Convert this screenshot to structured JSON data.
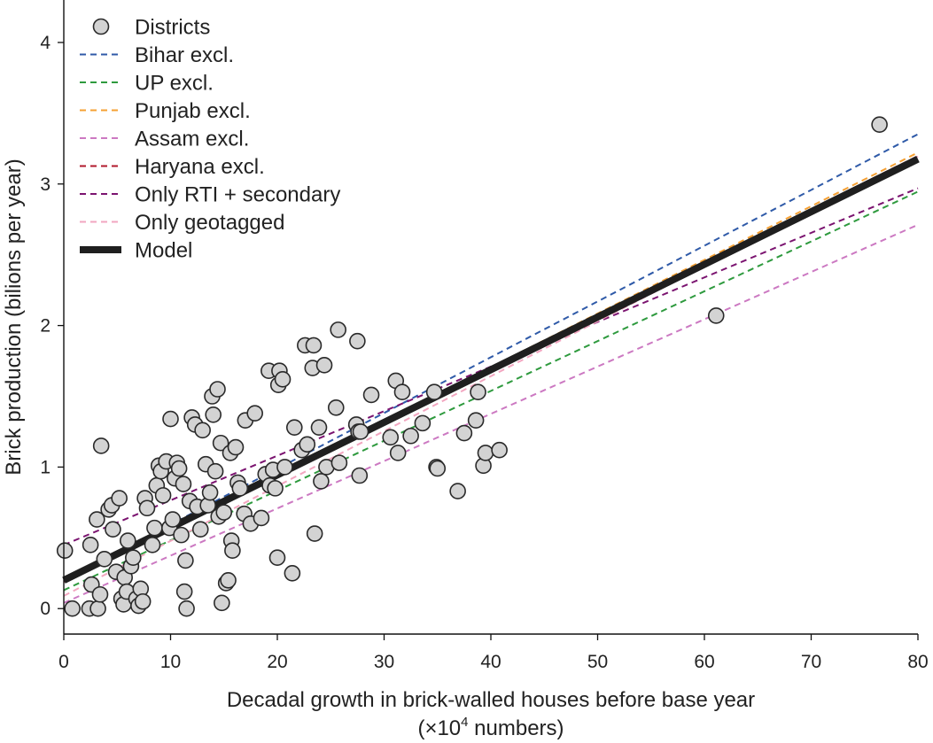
{
  "chart_data": {
    "type": "scatter",
    "title": "",
    "xlabel": "Decadal growth in brick-walled houses before base year",
    "xlabel_unit_prefix": "(×10",
    "xlabel_unit_exp": "4",
    "xlabel_unit_suffix": " numbers)",
    "ylabel": "Brick production (bilions per year)",
    "xlim": [
      0,
      80
    ],
    "ylim": [
      -0.18,
      4.3
    ],
    "xticks": [
      0,
      10,
      20,
      30,
      40,
      50,
      60,
      70,
      80
    ],
    "yticks": [
      0,
      1,
      2,
      3,
      4
    ],
    "grid": false,
    "legend_position": "top-left",
    "scatter": {
      "name": "Districts",
      "color": "#d3d3d3",
      "edgecolor": "#2a2a2a",
      "points": [
        [
          0.1,
          0.41
        ],
        [
          0.8,
          0.0
        ],
        [
          2.5,
          0.45
        ],
        [
          2.6,
          0.17
        ],
        [
          2.4,
          0.0
        ],
        [
          3.2,
          0.0
        ],
        [
          3.1,
          0.63
        ],
        [
          3.5,
          1.15
        ],
        [
          3.8,
          0.35
        ],
        [
          3.4,
          0.1
        ],
        [
          4.2,
          0.7
        ],
        [
          4.5,
          0.73
        ],
        [
          4.6,
          0.56
        ],
        [
          4.9,
          0.26
        ],
        [
          5.2,
          0.78
        ],
        [
          5.4,
          0.07
        ],
        [
          5.6,
          0.03
        ],
        [
          5.7,
          0.22
        ],
        [
          5.9,
          0.12
        ],
        [
          6.0,
          0.48
        ],
        [
          6.3,
          0.3
        ],
        [
          6.5,
          0.36
        ],
        [
          6.8,
          0.07
        ],
        [
          7.0,
          0.02
        ],
        [
          7.2,
          0.14
        ],
        [
          7.4,
          0.05
        ],
        [
          7.6,
          0.78
        ],
        [
          7.8,
          0.71
        ],
        [
          8.3,
          0.45
        ],
        [
          8.5,
          0.57
        ],
        [
          8.7,
          0.87
        ],
        [
          8.9,
          1.01
        ],
        [
          9.1,
          0.97
        ],
        [
          9.3,
          0.8
        ],
        [
          9.6,
          1.04
        ],
        [
          9.9,
          0.57
        ],
        [
          10.0,
          1.34
        ],
        [
          10.2,
          0.63
        ],
        [
          10.4,
          0.92
        ],
        [
          10.6,
          1.03
        ],
        [
          10.8,
          0.99
        ],
        [
          11.0,
          0.52
        ],
        [
          11.2,
          0.88
        ],
        [
          11.4,
          0.34
        ],
        [
          11.3,
          0.12
        ],
        [
          11.5,
          0.0
        ],
        [
          11.8,
          0.76
        ],
        [
          12.0,
          1.35
        ],
        [
          12.3,
          1.3
        ],
        [
          12.5,
          0.72
        ],
        [
          12.8,
          0.56
        ],
        [
          13.0,
          1.26
        ],
        [
          13.3,
          1.02
        ],
        [
          13.5,
          0.73
        ],
        [
          13.7,
          0.82
        ],
        [
          13.9,
          1.5
        ],
        [
          14.0,
          1.37
        ],
        [
          14.2,
          0.97
        ],
        [
          14.4,
          1.55
        ],
        [
          14.5,
          0.65
        ],
        [
          14.7,
          1.17
        ],
        [
          14.8,
          0.04
        ],
        [
          15.0,
          0.68
        ],
        [
          15.2,
          0.18
        ],
        [
          15.4,
          0.2
        ],
        [
          15.6,
          1.1
        ],
        [
          15.7,
          0.48
        ],
        [
          15.8,
          0.41
        ],
        [
          16.1,
          1.14
        ],
        [
          16.3,
          0.89
        ],
        [
          16.5,
          0.85
        ],
        [
          16.9,
          0.67
        ],
        [
          17.0,
          1.33
        ],
        [
          17.5,
          0.6
        ],
        [
          17.9,
          1.38
        ],
        [
          18.5,
          0.64
        ],
        [
          18.9,
          0.95
        ],
        [
          19.2,
          1.68
        ],
        [
          19.3,
          0.87
        ],
        [
          19.6,
          0.98
        ],
        [
          19.8,
          0.85
        ],
        [
          20.0,
          0.36
        ],
        [
          20.1,
          1.58
        ],
        [
          20.2,
          1.68
        ],
        [
          20.5,
          1.62
        ],
        [
          20.7,
          1.0
        ],
        [
          21.4,
          0.25
        ],
        [
          21.6,
          1.28
        ],
        [
          22.3,
          1.12
        ],
        [
          22.6,
          1.86
        ],
        [
          22.8,
          1.16
        ],
        [
          23.3,
          1.7
        ],
        [
          23.4,
          1.86
        ],
        [
          23.5,
          0.53
        ],
        [
          23.9,
          1.28
        ],
        [
          24.1,
          0.9
        ],
        [
          24.4,
          1.72
        ],
        [
          24.6,
          1.0
        ],
        [
          25.5,
          1.42
        ],
        [
          25.7,
          1.97
        ],
        [
          25.8,
          1.03
        ],
        [
          27.4,
          1.3
        ],
        [
          27.5,
          1.89
        ],
        [
          27.6,
          1.25
        ],
        [
          27.7,
          0.94
        ],
        [
          27.8,
          1.25
        ],
        [
          28.8,
          1.51
        ],
        [
          30.6,
          1.21
        ],
        [
          31.1,
          1.61
        ],
        [
          31.3,
          1.1
        ],
        [
          31.7,
          1.53
        ],
        [
          32.5,
          1.22
        ],
        [
          33.6,
          1.31
        ],
        [
          34.7,
          1.53
        ],
        [
          34.9,
          1.0
        ],
        [
          35.0,
          0.99
        ],
        [
          36.9,
          0.83
        ],
        [
          37.5,
          1.24
        ],
        [
          38.6,
          1.33
        ],
        [
          38.8,
          1.53
        ],
        [
          39.3,
          1.01
        ],
        [
          39.5,
          1.1
        ],
        [
          40.8,
          1.12
        ],
        [
          61.1,
          2.07
        ],
        [
          76.4,
          3.42
        ]
      ]
    },
    "series": [
      {
        "name": "Bihar excl.",
        "color": "#2f5aa8",
        "style": "dashed",
        "intercept": 0.2,
        "slope": 0.0394
      },
      {
        "name": "UP excl.",
        "color": "#2e9a3e",
        "style": "dashed",
        "intercept": 0.13,
        "slope": 0.0352
      },
      {
        "name": "Punjab excl.",
        "color": "#f5a033",
        "style": "dashed",
        "intercept": 0.19,
        "slope": 0.0379
      },
      {
        "name": "Assam excl.",
        "color": "#cc79c2",
        "style": "dashed",
        "intercept": 0.04,
        "slope": 0.0334
      },
      {
        "name": "Haryana excl.",
        "color": "#b2182b",
        "style": "dashed",
        "intercept": 0.19,
        "slope": 0.0376
      },
      {
        "name": "Only RTI + secondary",
        "color": "#7b1470",
        "style": "dashed",
        "intercept": 0.45,
        "slope": 0.0315
      },
      {
        "name": "Only geotagged",
        "color": "#f2a6c0",
        "style": "dashed",
        "intercept": 0.09,
        "slope": 0.0388
      },
      {
        "name": "Model",
        "color": "#1f1f1f",
        "style": "solid",
        "intercept": 0.2,
        "slope": 0.0372
      }
    ]
  }
}
